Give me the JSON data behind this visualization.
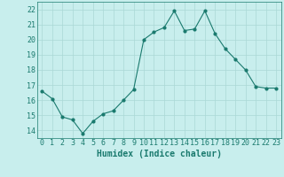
{
  "x": [
    0,
    1,
    2,
    3,
    4,
    5,
    6,
    7,
    8,
    9,
    10,
    11,
    12,
    13,
    14,
    15,
    16,
    17,
    18,
    19,
    20,
    21,
    22,
    23
  ],
  "y": [
    16.6,
    16.1,
    14.9,
    14.7,
    13.8,
    14.6,
    15.1,
    15.3,
    16.0,
    16.7,
    20.0,
    20.5,
    20.8,
    21.9,
    20.6,
    20.7,
    21.9,
    20.4,
    19.4,
    18.7,
    18.0,
    16.9,
    16.8,
    16.8
  ],
  "line_color": "#1a7a6e",
  "bg_color": "#c8eeed",
  "grid_color": "#aad8d5",
  "xlabel": "Humidex (Indice chaleur)",
  "xlabel_fontsize": 7,
  "tick_fontsize": 6,
  "ylim": [
    13.5,
    22.5
  ],
  "xlim": [
    -0.5,
    23.5
  ],
  "yticks": [
    14,
    15,
    16,
    17,
    18,
    19,
    20,
    21,
    22
  ],
  "xticks": [
    0,
    1,
    2,
    3,
    4,
    5,
    6,
    7,
    8,
    9,
    10,
    11,
    12,
    13,
    14,
    15,
    16,
    17,
    18,
    19,
    20,
    21,
    22,
    23
  ]
}
